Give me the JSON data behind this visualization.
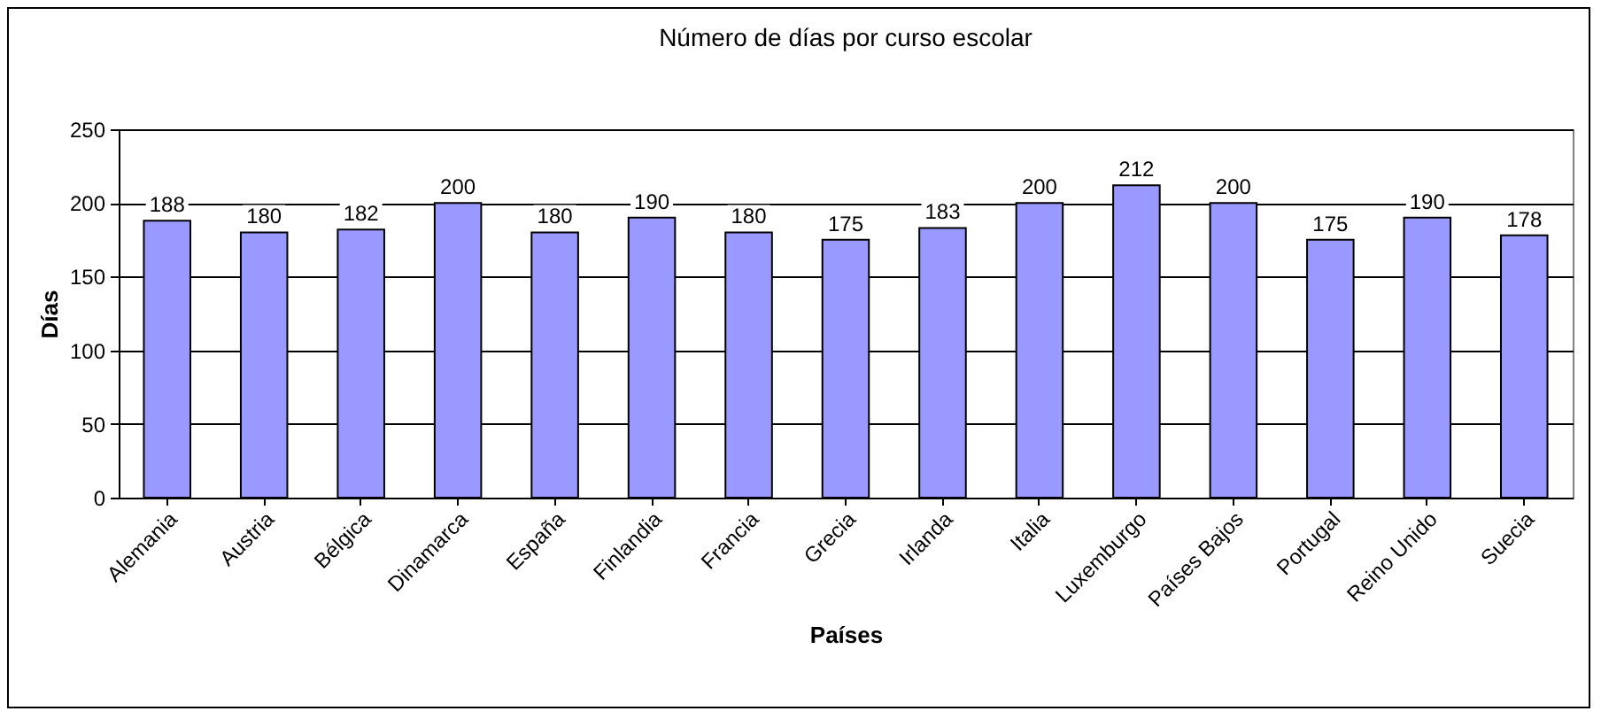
{
  "chart_data": {
    "type": "bar",
    "title": "Número de días por curso escolar",
    "xlabel": "Países",
    "ylabel": "Días",
    "categories": [
      "Alemania",
      "Austria",
      "Bélgica",
      "Dinamarca",
      "España",
      "Finlandia",
      "Francia",
      "Grecia",
      "Irlanda",
      "Italia",
      "Luxemburgo",
      "Países Bajos",
      "Portugal",
      "Reino Unido",
      "Suecia"
    ],
    "values": [
      188,
      180,
      182,
      200,
      180,
      190,
      180,
      175,
      183,
      200,
      212,
      200,
      175,
      190,
      178
    ],
    "color": "#9999ff",
    "ylim": [
      0,
      250
    ],
    "yticks": [
      0,
      50,
      100,
      150,
      200,
      250
    ],
    "grid": "y",
    "data_labels": true
  }
}
